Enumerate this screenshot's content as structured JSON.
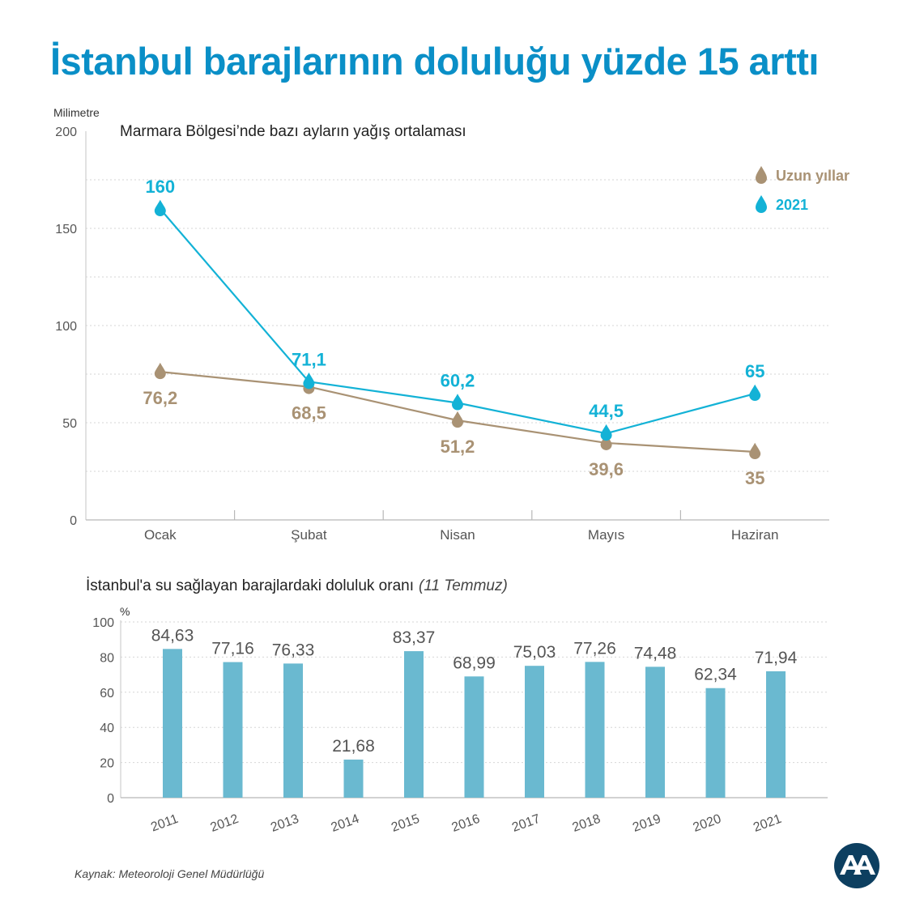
{
  "title": "İstanbul barajlarının doluluğu yüzde 15 arttı",
  "source": "Kaynak: Meteoroloji Genel Müdürlüğü",
  "logo": {
    "icon": "aa-logo-icon",
    "text": "AA"
  },
  "colors": {
    "title": "#0a8fc7",
    "blue_series": "#13b2d6",
    "brown_series": "#a99274",
    "bars": "#6ab9d0"
  },
  "chart_data": [
    {
      "type": "line",
      "title": "Marmara Bölgesi’nde bazı ayların yağış ortalaması",
      "ylabel": "Milimetre",
      "xlabel": "",
      "categories": [
        "Ocak",
        "Şubat",
        "Nisan",
        "Mayıs",
        "Haziran"
      ],
      "ylim": [
        0,
        200
      ],
      "yticks": [
        0,
        50,
        100,
        150,
        200
      ],
      "series": [
        {
          "name": "Uzun yıllar",
          "values": [
            76.2,
            68.5,
            51.2,
            39.6,
            35
          ],
          "labels": [
            "76,2",
            "68,5",
            "51,2",
            "39,6",
            "35"
          ]
        },
        {
          "name": "2021",
          "values": [
            160,
            71.1,
            60.2,
            44.5,
            65
          ],
          "labels": [
            "160",
            "71,1",
            "60,2",
            "44,5",
            "65"
          ]
        }
      ],
      "legend": "top-right",
      "grid": true
    },
    {
      "type": "bar",
      "title": "İstanbul'a su sağlayan barajlardaki doluluk oranı",
      "title_note": "(11 Temmuz)",
      "ylabel": "%",
      "xlabel": "",
      "categories": [
        "2011",
        "2012",
        "2013",
        "2014",
        "2015",
        "2016",
        "2017",
        "2018",
        "2019",
        "2020",
        "2021"
      ],
      "values": [
        84.63,
        77.16,
        76.33,
        21.68,
        83.37,
        68.99,
        75.03,
        77.26,
        74.48,
        62.34,
        71.94
      ],
      "labels": [
        "84,63",
        "77,16",
        "76,33",
        "21,68",
        "83,37",
        "68,99",
        "75,03",
        "77,26",
        "74,48",
        "62,34",
        "71,94"
      ],
      "ylim": [
        0,
        100
      ],
      "yticks": [
        0,
        20,
        40,
        60,
        80,
        100
      ],
      "grid": true
    }
  ]
}
